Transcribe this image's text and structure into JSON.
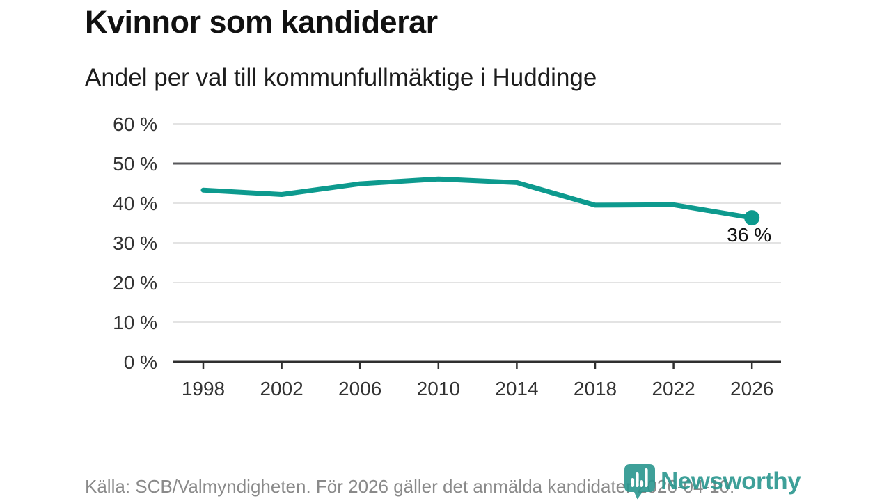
{
  "header": {
    "title": "Kvinnor som kandiderar",
    "subtitle": "Andel per val till kommunfullmäktige i Huddinge"
  },
  "chart_data": {
    "type": "line",
    "title": "Kvinnor som kandiderar",
    "subtitle": "Andel per val till kommunfullmäktige i Huddinge",
    "categories": [
      "1998",
      "2002",
      "2006",
      "2010",
      "2014",
      "2018",
      "2022",
      "2026"
    ],
    "values": [
      43.3,
      42.2,
      44.9,
      46.1,
      45.2,
      39.5,
      39.6,
      36.3
    ],
    "xlabel": "",
    "ylabel": "%",
    "ylim": [
      0,
      60
    ],
    "grid": "horizontal",
    "legend": "none",
    "y_axis": {
      "tick_values": [
        60,
        50,
        40,
        30,
        20,
        10,
        0
      ],
      "tick_labels": [
        "60 %",
        "50 %",
        "40 %",
        "30 %",
        "20 %",
        "10 %",
        "0 %"
      ],
      "emphasis_value": 50
    },
    "annotation": "36 %",
    "colors": {
      "line": "#0d9a8e",
      "grid": "#e3e3e3",
      "emphasis_grid": "#58585b",
      "axis": "#2f2f2f",
      "tick_text": "#333333",
      "annotation_text": "#111111"
    }
  },
  "footer": {
    "source": "Källa: SCB/Valmyndigheten. För 2026 gäller det anmälda kandidater 2026-04-10.",
    "brand": "Newsworthy",
    "brand_color": "#2a968e"
  }
}
